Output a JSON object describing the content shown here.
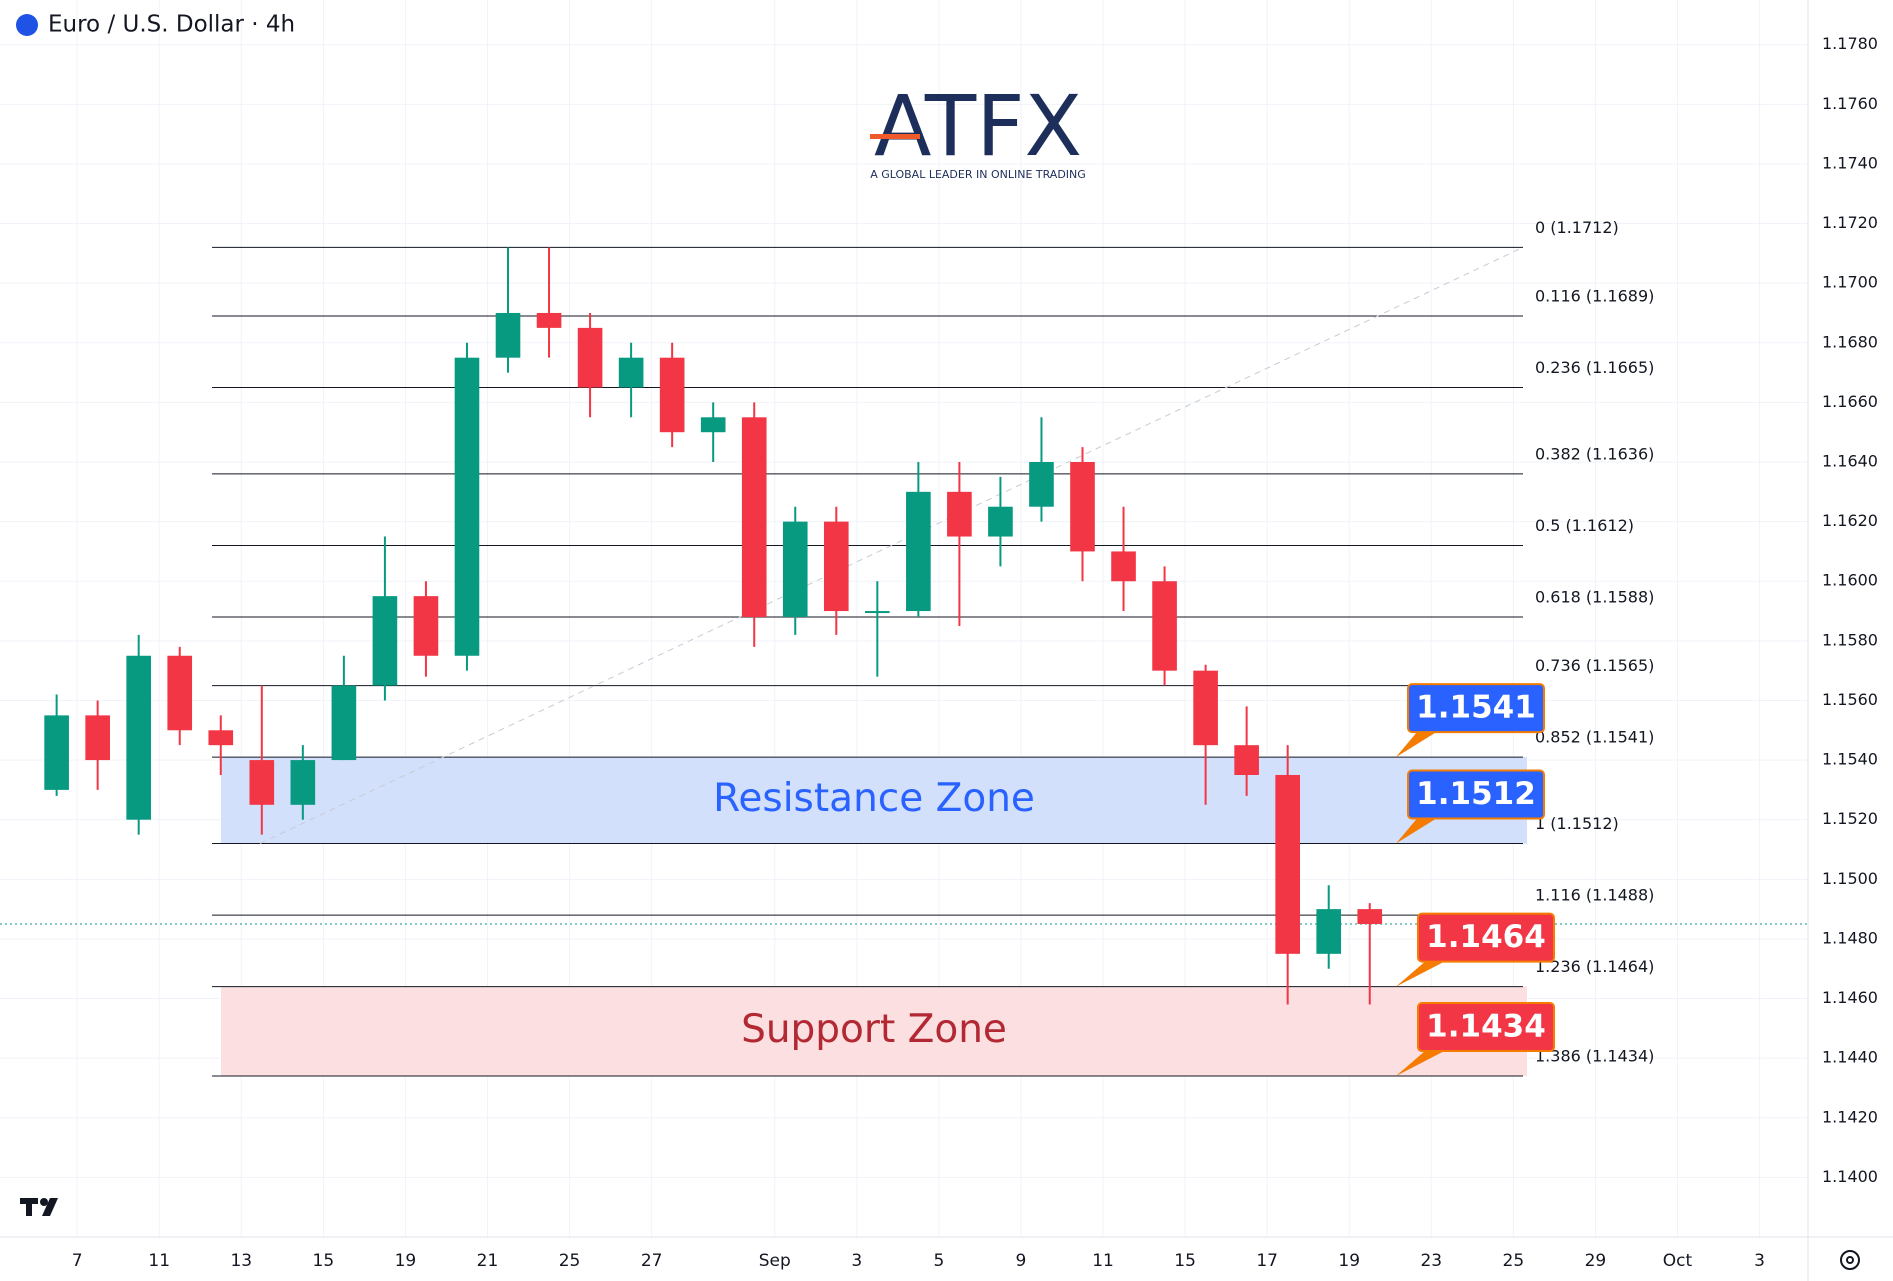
{
  "chart_data": {
    "type": "candlestick",
    "title": "Euro / U.S. Dollar · 4h",
    "logo": "ATFX",
    "logo_tagline": "A GLOBAL LEADER IN ONLINE TRADING",
    "up_color": "#089981",
    "down_color": "#f23645",
    "x": [
      -1,
      0,
      1,
      2,
      3,
      4,
      5,
      6,
      7,
      8,
      9,
      10,
      11,
      12,
      13,
      14,
      15,
      16,
      17,
      18,
      19,
      20,
      21,
      22,
      23,
      24,
      25,
      26,
      27,
      28,
      29,
      30,
      31
    ],
    "open": [
      1.153,
      1.1555,
      1.152,
      1.1575,
      1.155,
      1.154,
      1.1525,
      1.154,
      1.1565,
      1.1595,
      1.1575,
      1.1675,
      1.169,
      1.1685,
      1.1665,
      1.1675,
      1.165,
      1.1655,
      1.1588,
      1.162,
      1.159,
      1.159,
      1.163,
      1.1615,
      1.1625,
      1.164,
      1.161,
      1.16,
      1.157,
      1.1545,
      1.1535,
      1.1475,
      1.149
    ],
    "high": [
      1.1562,
      1.156,
      1.1582,
      1.1578,
      1.1555,
      1.1565,
      1.1545,
      1.1575,
      1.1615,
      1.16,
      1.168,
      1.1712,
      1.1712,
      1.169,
      1.168,
      1.168,
      1.166,
      1.166,
      1.1625,
      1.1625,
      1.16,
      1.164,
      1.164,
      1.1635,
      1.1655,
      1.1645,
      1.1625,
      1.1605,
      1.1572,
      1.1558,
      1.1545,
      1.1498,
      1.1492
    ],
    "low": [
      1.1528,
      1.153,
      1.1515,
      1.1545,
      1.1535,
      1.1515,
      1.152,
      1.154,
      1.156,
      1.1568,
      1.157,
      1.167,
      1.1675,
      1.1655,
      1.1655,
      1.1645,
      1.164,
      1.1578,
      1.1582,
      1.1582,
      1.1568,
      1.1588,
      1.1585,
      1.1605,
      1.162,
      1.16,
      1.159,
      1.1565,
      1.1525,
      1.1528,
      1.1458,
      1.147,
      1.1458
    ],
    "close": [
      1.1555,
      1.154,
      1.1575,
      1.155,
      1.1545,
      1.1525,
      1.154,
      1.1565,
      1.1595,
      1.1575,
      1.1675,
      1.169,
      1.1685,
      1.1665,
      1.1675,
      1.165,
      1.1655,
      1.1588,
      1.162,
      1.159,
      1.159,
      1.163,
      1.1615,
      1.1625,
      1.164,
      1.161,
      1.16,
      1.157,
      1.1545,
      1.1535,
      1.1475,
      1.149,
      1.1485
    ],
    "xlim": [
      -1.88,
      42.18
    ],
    "xticks": [
      {
        "value": 0,
        "label": "7"
      },
      {
        "value": 2,
        "label": "11"
      },
      {
        "value": 4,
        "label": "13"
      },
      {
        "value": 6,
        "label": "15"
      },
      {
        "value": 8,
        "label": "19"
      },
      {
        "value": 10,
        "label": "21"
      },
      {
        "value": 12,
        "label": "25"
      },
      {
        "value": 14,
        "label": "27"
      },
      {
        "value": 17,
        "label": "Sep"
      },
      {
        "value": 19,
        "label": "3"
      },
      {
        "value": 21,
        "label": "5"
      },
      {
        "value": 23,
        "label": "9"
      },
      {
        "value": 25,
        "label": "11"
      },
      {
        "value": 27,
        "label": "15"
      },
      {
        "value": 29,
        "label": "17"
      },
      {
        "value": 31,
        "label": "19"
      },
      {
        "value": 33,
        "label": "23"
      },
      {
        "value": 35,
        "label": "25"
      },
      {
        "value": 37,
        "label": "29"
      },
      {
        "value": 39,
        "label": "Oct"
      },
      {
        "value": 41,
        "label": "3"
      }
    ],
    "ylim": [
      1.138,
      1.1795
    ],
    "yticks": [
      {
        "value": 1.14,
        "label": "1.1400"
      },
      {
        "value": 1.142,
        "label": "1.1420"
      },
      {
        "value": 1.144,
        "label": "1.1440"
      },
      {
        "value": 1.146,
        "label": "1.1460"
      },
      {
        "value": 1.148,
        "label": "1.1480"
      },
      {
        "value": 1.15,
        "label": "1.1500"
      },
      {
        "value": 1.152,
        "label": "1.1520"
      },
      {
        "value": 1.154,
        "label": "1.1540"
      },
      {
        "value": 1.156,
        "label": "1.1560"
      },
      {
        "value": 1.158,
        "label": "1.1580"
      },
      {
        "value": 1.16,
        "label": "1.1600"
      },
      {
        "value": 1.162,
        "label": "1.1620"
      },
      {
        "value": 1.164,
        "label": "1.1640"
      },
      {
        "value": 1.166,
        "label": "1.1660"
      },
      {
        "value": 1.168,
        "label": "1.1680"
      },
      {
        "value": 1.17,
        "label": "1.1700"
      },
      {
        "value": 1.172,
        "label": "1.1720"
      },
      {
        "value": 1.174,
        "label": "1.1740"
      },
      {
        "value": 1.176,
        "label": "1.1760"
      },
      {
        "value": 1.178,
        "label": "1.1780"
      }
    ],
    "grid": true,
    "last_price": 1.1485,
    "fib_levels": [
      {
        "value": 1.1712,
        "label": "0 (1.1712)"
      },
      {
        "value": 1.1689,
        "label": "0.116 (1.1689)"
      },
      {
        "value": 1.1665,
        "label": "0.236 (1.1665)"
      },
      {
        "value": 1.1636,
        "label": "0.382 (1.1636)"
      },
      {
        "value": 1.1612,
        "label": "0.5 (1.1612)"
      },
      {
        "value": 1.1588,
        "label": "0.618 (1.1588)"
      },
      {
        "value": 1.1565,
        "label": "0.736 (1.1565)"
      },
      {
        "value": 1.1541,
        "label": "0.852 (1.1541)"
      },
      {
        "value": 1.1512,
        "label": "1 (1.1512)"
      },
      {
        "value": 1.1488,
        "label": "1.116 (1.1488)"
      },
      {
        "value": 1.1464,
        "label": "1.236 (1.1464)"
      },
      {
        "value": 1.1434,
        "label": "1.386 (1.1434)"
      }
    ],
    "zones": [
      {
        "name": "Resistance Zone",
        "low": 1.1512,
        "high": 1.1541,
        "fill": "#d2e0fb",
        "text_color": "#2962ff",
        "badge_color": "#2962ff"
      },
      {
        "name": "Support Zone",
        "low": 1.1434,
        "high": 1.1464,
        "fill": "#fbdfe1",
        "text_color": "#b22833",
        "badge_color": "#f23645"
      }
    ]
  }
}
